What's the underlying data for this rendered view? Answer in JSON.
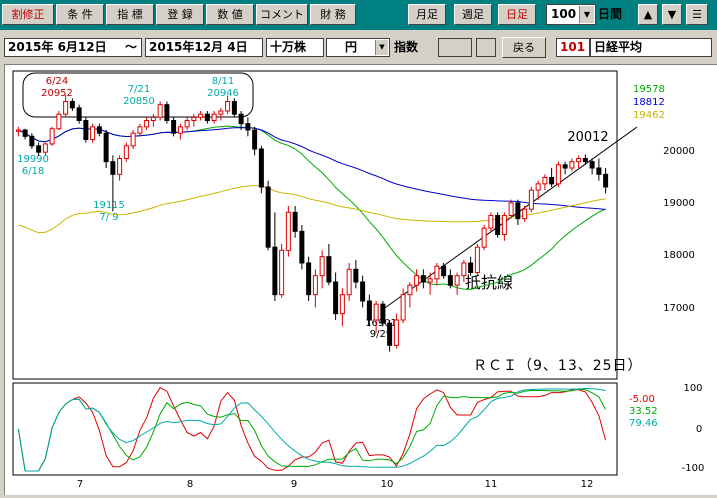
{
  "toolbar": {
    "buttons": [
      "割修正",
      "条 件",
      "指 標",
      "登 録",
      "数 値",
      "コメント",
      "財 務"
    ],
    "period_buttons": [
      "月足",
      "週足",
      "日足"
    ],
    "count_value": "100",
    "count_unit": "日間",
    "nav_icons": [
      "up-arrow-icon",
      "down-arrow-icon",
      "menu-icon"
    ],
    "up": "▲",
    "down": "▼",
    "menu": "☰"
  },
  "datebar": {
    "start_date": "2015年 6月12日",
    "tilde": "～",
    "end_date": "2015年12月 4日",
    "unit": "十万株",
    "currency": "円",
    "index_label": "指数",
    "back_button": "戻る",
    "code": "101",
    "name": "日経平均"
  },
  "chart": {
    "price_axis": [
      "20000",
      "19000",
      "18000",
      "17000"
    ],
    "ma_values": [
      {
        "value": "19578",
        "color": "#00aa00"
      },
      {
        "value": "18812",
        "color": "#0000cc"
      },
      {
        "value": "19462",
        "color": "#c8b400"
      }
    ],
    "annotations": {
      "high1_date": "6/24",
      "high1_value": "20952",
      "high2_date": "7/21",
      "high2_value": "20850",
      "high3_date": "8/11",
      "high3_value": "20946",
      "low1_value": "19990",
      "low1_date": "6/18",
      "low2_value": "19115",
      "low2_date": "7/ 9",
      "low3_value": "16901",
      "low3_date": "9/29",
      "last_high": "20012",
      "resistance_line": "抵抗線"
    },
    "rci_title": "ＲＣＩ（9、13、25日）",
    "rci_axis": [
      "100",
      "0",
      "-100"
    ],
    "rci_values": [
      {
        "value": "-5.00",
        "color": "#dd0000"
      },
      {
        "value": "33.52",
        "color": "#00aa00"
      },
      {
        "value": "79.46",
        "color": "#00aaaa"
      }
    ],
    "month_labels": [
      "7",
      "8",
      "9",
      "10",
      "11",
      "12"
    ]
  },
  "chart_data": {
    "type": "candlestick",
    "title": "日経平均",
    "x_range": [
      "2015-06-12",
      "2015-12-04"
    ],
    "y_range": [
      16500,
      21300
    ],
    "candles_approx": [
      [
        20380,
        20450,
        20300,
        20400
      ],
      [
        20400,
        20420,
        20250,
        20300
      ],
      [
        20300,
        20350,
        20100,
        20150
      ],
      [
        20150,
        20200,
        19990,
        20050
      ],
      [
        20050,
        20200,
        20000,
        20180
      ],
      [
        20180,
        20450,
        20150,
        20420
      ],
      [
        20420,
        20700,
        20400,
        20650
      ],
      [
        20650,
        20952,
        20600,
        20850
      ],
      [
        20850,
        20900,
        20700,
        20750
      ],
      [
        20750,
        20800,
        20500,
        20550
      ],
      [
        20550,
        20600,
        20200,
        20250
      ],
      [
        20250,
        20500,
        20200,
        20450
      ],
      [
        20450,
        20500,
        20300,
        20350
      ],
      [
        20350,
        20400,
        19800,
        19900
      ],
      [
        19900,
        20000,
        19115,
        19700
      ],
      [
        19700,
        20000,
        19600,
        19950
      ],
      [
        19950,
        20200,
        19900,
        20150
      ],
      [
        20150,
        20400,
        20100,
        20350
      ],
      [
        20350,
        20500,
        20300,
        20450
      ],
      [
        20450,
        20600,
        20400,
        20550
      ],
      [
        20550,
        20650,
        20450,
        20600
      ],
      [
        20600,
        20850,
        20550,
        20800
      ],
      [
        20800,
        20850,
        20500,
        20550
      ],
      [
        20550,
        20600,
        20300,
        20350
      ],
      [
        20350,
        20500,
        20250,
        20450
      ],
      [
        20450,
        20600,
        20400,
        20550
      ],
      [
        20550,
        20650,
        20450,
        20600
      ],
      [
        20600,
        20700,
        20550,
        20650
      ],
      [
        20650,
        20700,
        20500,
        20550
      ],
      [
        20550,
        20700,
        20500,
        20650
      ],
      [
        20650,
        20750,
        20550,
        20700
      ],
      [
        20700,
        20946,
        20650,
        20850
      ],
      [
        20850,
        20900,
        20600,
        20650
      ],
      [
        20650,
        20700,
        20400,
        20500
      ],
      [
        20500,
        20600,
        20300,
        20400
      ],
      [
        20400,
        20450,
        20000,
        20100
      ],
      [
        20100,
        20150,
        19400,
        19500
      ],
      [
        19500,
        19600,
        18500,
        18550
      ],
      [
        18550,
        19100,
        17700,
        17800
      ],
      [
        17800,
        18600,
        17750,
        18500
      ],
      [
        18500,
        19200,
        18400,
        19100
      ],
      [
        19100,
        19200,
        18700,
        18800
      ],
      [
        18800,
        18900,
        18200,
        18300
      ],
      [
        18300,
        18400,
        17700,
        17800
      ],
      [
        17800,
        18200,
        17600,
        18100
      ],
      [
        18100,
        18500,
        17900,
        18400
      ],
      [
        18400,
        18600,
        17950,
        18000
      ],
      [
        18000,
        18150,
        17400,
        17500
      ],
      [
        17500,
        17900,
        17300,
        17800
      ],
      [
        17800,
        18300,
        17700,
        18200
      ],
      [
        18200,
        18350,
        17900,
        18000
      ],
      [
        18000,
        18100,
        17600,
        17700
      ],
      [
        17700,
        17800,
        17300,
        17400
      ],
      [
        17400,
        17700,
        17200,
        17650
      ],
      [
        17650,
        17700,
        17300,
        17350
      ],
      [
        17350,
        17400,
        16901,
        17000
      ],
      [
        17000,
        17500,
        16950,
        17400
      ],
      [
        17400,
        17900,
        17350,
        17800
      ],
      [
        17800,
        18000,
        17600,
        17950
      ],
      [
        17950,
        18200,
        17850,
        18100
      ],
      [
        18100,
        18200,
        17900,
        18000
      ],
      [
        18000,
        18150,
        17800,
        18050
      ],
      [
        18050,
        18300,
        17950,
        18250
      ],
      [
        18250,
        18300,
        18050,
        18100
      ],
      [
        18100,
        18200,
        17900,
        17950
      ],
      [
        17950,
        18150,
        17800,
        18100
      ],
      [
        18100,
        18350,
        18000,
        18300
      ],
      [
        18300,
        18400,
        18100,
        18150
      ],
      [
        18150,
        18600,
        18100,
        18550
      ],
      [
        18550,
        18900,
        18500,
        18850
      ],
      [
        18850,
        19100,
        18800,
        19050
      ],
      [
        19050,
        19100,
        18700,
        18750
      ],
      [
        18750,
        19100,
        18650,
        19050
      ],
      [
        19050,
        19300,
        19000,
        19250
      ],
      [
        19250,
        19300,
        18900,
        19000
      ],
      [
        19000,
        19200,
        18950,
        19150
      ],
      [
        19150,
        19500,
        19100,
        19450
      ],
      [
        19450,
        19600,
        19300,
        19550
      ],
      [
        19550,
        19700,
        19450,
        19650
      ],
      [
        19650,
        19800,
        19500,
        19550
      ],
      [
        19550,
        19900,
        19500,
        19850
      ],
      [
        19850,
        19900,
        19700,
        19800
      ],
      [
        19800,
        19950,
        19750,
        19900
      ],
      [
        19900,
        20000,
        19800,
        19950
      ],
      [
        19950,
        20012,
        19850,
        19900
      ],
      [
        19900,
        19950,
        19700,
        19800
      ],
      [
        19800,
        19950,
        19600,
        19700
      ],
      [
        19700,
        19800,
        19400,
        19500
      ]
    ],
    "moving_averages": [
      "19578",
      "18812",
      "19462"
    ]
  }
}
